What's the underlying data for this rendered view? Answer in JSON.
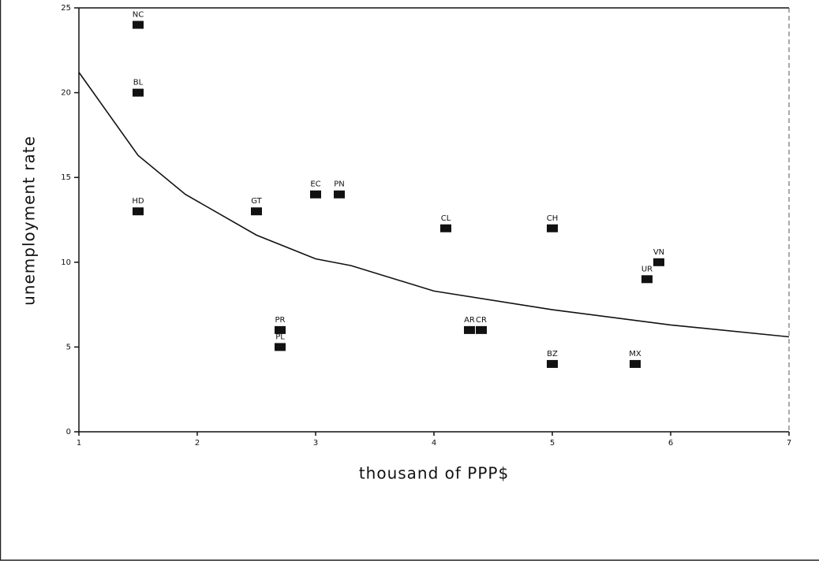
{
  "chart_data": {
    "type": "scatter",
    "x_label": "thousand of PPP$",
    "y_label": "unemployment rate",
    "xlim": [
      1,
      7
    ],
    "xticks": [
      1,
      2,
      3,
      4,
      5,
      6,
      7
    ],
    "ylim": [
      0,
      25
    ],
    "yticks": [
      0,
      5,
      10,
      15,
      20,
      25
    ],
    "color": "#111111",
    "labels": [
      "NC",
      "BL",
      "HD",
      "GT",
      "EC",
      "PN",
      "CL",
      "CH",
      "VN",
      "UR",
      "PR",
      "PL",
      "AR",
      "CR",
      "BZ",
      "MX"
    ],
    "x": [
      1.5,
      1.5,
      1.5,
      2.5,
      3.0,
      3.2,
      4.1,
      5.0,
      5.9,
      5.8,
      2.7,
      2.7,
      4.3,
      4.4,
      5.0,
      5.7
    ],
    "values": [
      24,
      20,
      13,
      13,
      14,
      14,
      12,
      12,
      10,
      9,
      6,
      5,
      6,
      6,
      4,
      4
    ],
    "fit_line": {
      "x": [
        1,
        1.5,
        1.9,
        2.5,
        3,
        3.3,
        4,
        5,
        6,
        7
      ],
      "values": [
        21.2,
        16.3,
        14.0,
        11.6,
        10.2,
        9.8,
        8.3,
        7.2,
        6.3,
        5.6
      ]
    }
  }
}
